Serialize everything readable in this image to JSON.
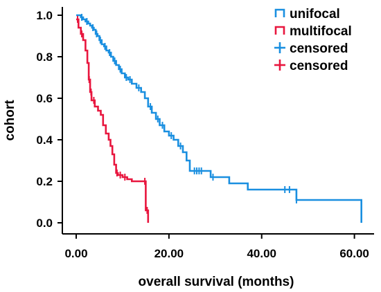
{
  "chart_data": {
    "type": "line",
    "subtype": "kaplan-meier-step",
    "xlabel": "overall survival (months)",
    "ylabel": "cohort",
    "xlim": [
      0,
      62
    ],
    "ylim": [
      0,
      1.0
    ],
    "x_ticks": [
      "0.00",
      "20.00",
      "40.00",
      "60.00"
    ],
    "x_tick_values": [
      0,
      20,
      40,
      60
    ],
    "y_ticks": [
      "0.0",
      "0.2",
      "0.4",
      "0.6",
      "0.8",
      "1.0"
    ],
    "y_tick_values": [
      0,
      0.2,
      0.4,
      0.6,
      0.8,
      1.0
    ],
    "grid": false,
    "legend_position": "top-right",
    "legend": [
      {
        "label": "unifocal",
        "kind": "line",
        "color": "#1a8fe0"
      },
      {
        "label": "multifocal",
        "kind": "line",
        "color": "#e8163e"
      },
      {
        "label": "censored",
        "kind": "censor",
        "color": "#1a8fe0"
      },
      {
        "label": "censored",
        "kind": "censor",
        "color": "#e8163e"
      }
    ],
    "series": [
      {
        "name": "unifocal",
        "color": "#1a8fe0",
        "steps": [
          [
            0,
            1.0
          ],
          [
            1.0,
            0.99
          ],
          [
            1.5,
            0.98
          ],
          [
            2.0,
            0.97
          ],
          [
            2.6,
            0.96
          ],
          [
            3.0,
            0.95
          ],
          [
            3.4,
            0.94
          ],
          [
            3.8,
            0.93
          ],
          [
            4.2,
            0.91
          ],
          [
            4.6,
            0.9
          ],
          [
            5.0,
            0.88
          ],
          [
            5.5,
            0.86
          ],
          [
            6.0,
            0.85
          ],
          [
            6.5,
            0.83
          ],
          [
            7.0,
            0.82
          ],
          [
            7.5,
            0.8
          ],
          [
            8.0,
            0.78
          ],
          [
            8.6,
            0.76
          ],
          [
            9.2,
            0.74
          ],
          [
            9.8,
            0.72
          ],
          [
            10.5,
            0.7
          ],
          [
            11.2,
            0.69
          ],
          [
            12.0,
            0.67
          ],
          [
            13.0,
            0.65
          ],
          [
            14.0,
            0.63
          ],
          [
            14.8,
            0.6
          ],
          [
            15.5,
            0.56
          ],
          [
            16.3,
            0.53
          ],
          [
            17.2,
            0.5
          ],
          [
            18.0,
            0.47
          ],
          [
            19.0,
            0.44
          ],
          [
            20.0,
            0.42
          ],
          [
            21.0,
            0.4
          ],
          [
            22.0,
            0.37
          ],
          [
            23.0,
            0.34
          ],
          [
            23.8,
            0.3
          ],
          [
            24.5,
            0.25
          ],
          [
            29.0,
            0.22
          ],
          [
            33.0,
            0.19
          ],
          [
            37.0,
            0.16
          ],
          [
            47.5,
            0.11
          ],
          [
            61.5,
            0.0
          ]
        ],
        "end_x": 61.5,
        "censored": [
          [
            1.2,
            0.99
          ],
          [
            2.3,
            0.97
          ],
          [
            3.6,
            0.94
          ],
          [
            4.4,
            0.91
          ],
          [
            5.2,
            0.88
          ],
          [
            6.2,
            0.85
          ],
          [
            7.2,
            0.82
          ],
          [
            8.3,
            0.78
          ],
          [
            9.5,
            0.74
          ],
          [
            10.8,
            0.7
          ],
          [
            11.6,
            0.69
          ],
          [
            13.5,
            0.65
          ],
          [
            16.0,
            0.56
          ],
          [
            17.6,
            0.5
          ],
          [
            18.6,
            0.47
          ],
          [
            20.5,
            0.42
          ],
          [
            22.5,
            0.37
          ],
          [
            25.5,
            0.25
          ],
          [
            26.0,
            0.25
          ],
          [
            26.5,
            0.25
          ],
          [
            27.0,
            0.25
          ],
          [
            29.5,
            0.22
          ],
          [
            45.0,
            0.16
          ],
          [
            46.0,
            0.16
          ],
          [
            47.5,
            0.11
          ]
        ]
      },
      {
        "name": "multifocal",
        "color": "#e8163e",
        "steps": [
          [
            0,
            0.98
          ],
          [
            0.5,
            0.94
          ],
          [
            1.0,
            0.91
          ],
          [
            1.5,
            0.88
          ],
          [
            2.0,
            0.83
          ],
          [
            2.4,
            0.77
          ],
          [
            2.7,
            0.69
          ],
          [
            3.0,
            0.63
          ],
          [
            3.3,
            0.59
          ],
          [
            4.0,
            0.56
          ],
          [
            4.7,
            0.54
          ],
          [
            5.3,
            0.52
          ],
          [
            5.8,
            0.47
          ],
          [
            6.4,
            0.43
          ],
          [
            7.0,
            0.4
          ],
          [
            7.4,
            0.37
          ],
          [
            7.8,
            0.33
          ],
          [
            8.2,
            0.28
          ],
          [
            8.6,
            0.24
          ],
          [
            9.0,
            0.23
          ],
          [
            10.0,
            0.22
          ],
          [
            11.0,
            0.21
          ],
          [
            12.0,
            0.2
          ],
          [
            15.0,
            0.06
          ],
          [
            15.5,
            0.0
          ]
        ],
        "end_x": 15.5,
        "censored": [
          [
            0.3,
            0.98
          ],
          [
            1.2,
            0.91
          ],
          [
            2.8,
            0.69
          ],
          [
            3.2,
            0.63
          ],
          [
            3.8,
            0.59
          ],
          [
            8.8,
            0.24
          ],
          [
            9.5,
            0.23
          ],
          [
            10.5,
            0.22
          ],
          [
            14.8,
            0.2
          ],
          [
            15.3,
            0.06
          ]
        ]
      }
    ]
  }
}
